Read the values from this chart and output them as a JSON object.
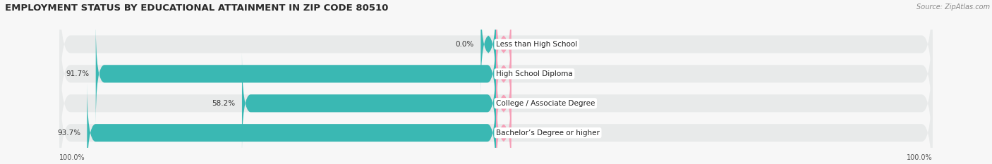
{
  "title": "EMPLOYMENT STATUS BY EDUCATIONAL ATTAINMENT IN ZIP CODE 80510",
  "source": "Source: ZipAtlas.com",
  "categories": [
    "Less than High School",
    "High School Diploma",
    "College / Associate Degree",
    "Bachelor’s Degree or higher"
  ],
  "labor_force_pct": [
    0.0,
    91.7,
    58.2,
    93.7
  ],
  "unemployed_pct": [
    0.0,
    0.0,
    0.0,
    0.0
  ],
  "labor_force_color": "#3ab8b3",
  "unemployed_color": "#f5a0b8",
  "bg_bar_color": "#e8eaea",
  "background_color": "#f7f7f7",
  "title_fontsize": 9.5,
  "source_fontsize": 7,
  "label_fontsize": 7.5,
  "axis_label_fontsize": 7,
  "legend_fontsize": 7.5,
  "max_value": 100.0,
  "left_axis_label": "100.0%",
  "right_axis_label": "100.0%",
  "bar_height": 0.6,
  "small_stub": 3.5
}
